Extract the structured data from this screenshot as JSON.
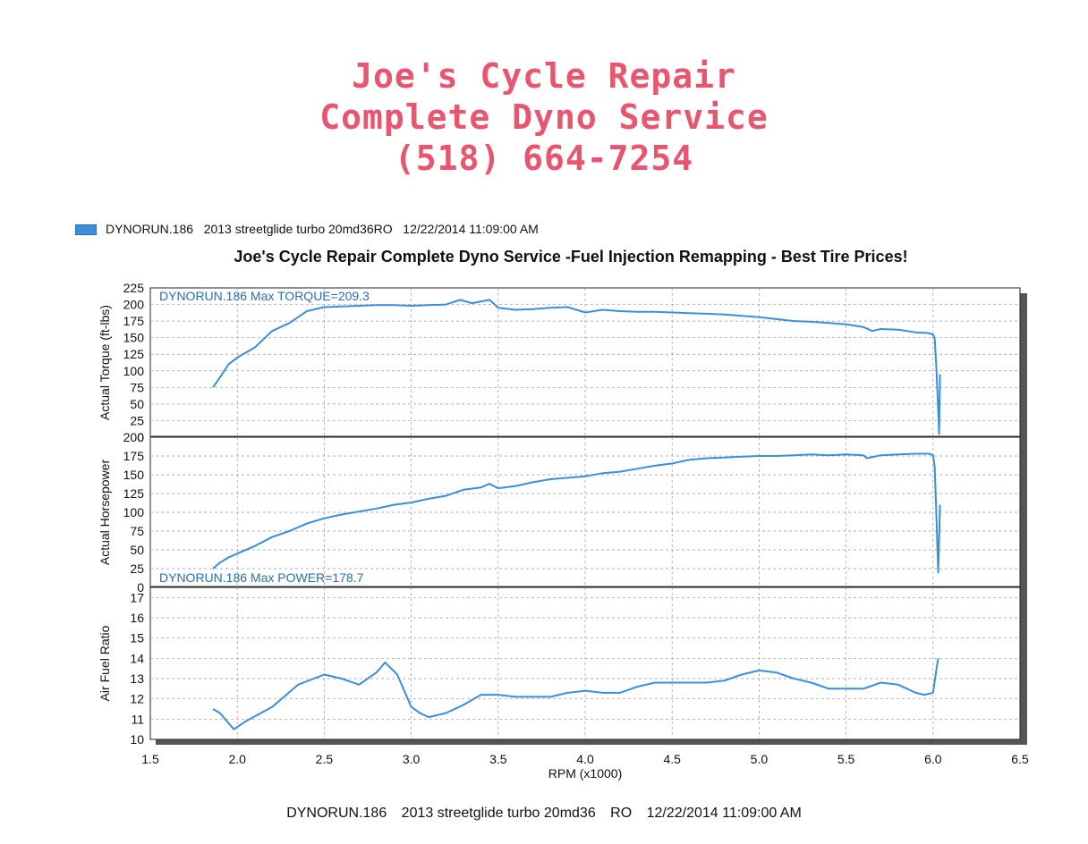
{
  "header": {
    "line1": "Joe's Cycle Repair",
    "line2": "Complete Dyno Service",
    "line3": "(518) 664-7254",
    "color": "#e8556e"
  },
  "legend": {
    "run": "DYNORUN.186",
    "desc": "2013 streetglide turbo 20md36RO",
    "datetime": "12/22/2014 11:09:00 AM"
  },
  "footer": {
    "run": "DYNORUN.186",
    "desc": "2013 streetglide turbo 20md36",
    "code": "RO",
    "datetime": "12/22/2014 11:09:00 AM"
  },
  "chart_data": {
    "type": "line",
    "title": "Joe's Cycle Repair Complete Dyno Service -Fuel Injection Remapping - Best Tire Prices!",
    "xlabel": "RPM (x1000)",
    "xlim": [
      1.5,
      6.5
    ],
    "xticks": [
      "1.5",
      "2.0",
      "2.5",
      "3.0",
      "3.5",
      "4.0",
      "4.5",
      "5.0",
      "5.5",
      "6.0",
      "6.5"
    ],
    "line_color": "#3a8fd8",
    "grid": true,
    "panels": [
      {
        "ylabel": "Actual Torque (ft-lbs)",
        "ylim": [
          0,
          225
        ],
        "yticks": [
          "0",
          "25",
          "50",
          "75",
          "100",
          "125",
          "150",
          "175",
          "200",
          "225"
        ],
        "annotation": "DYNORUN.186  Max TORQUE=209.3",
        "annotation_position": "top-left",
        "series": [
          {
            "x": [
              1.86,
              1.9,
              1.95,
              2.0,
              2.1,
              2.2,
              2.3,
              2.4,
              2.5,
              2.6,
              2.7,
              2.8,
              2.9,
              3.0,
              3.1,
              3.2,
              3.28,
              3.35,
              3.45,
              3.5,
              3.6,
              3.7,
              3.8,
              3.9,
              4.0,
              4.1,
              4.2,
              4.3,
              4.4,
              4.5,
              4.6,
              4.7,
              4.8,
              4.9,
              5.0,
              5.1,
              5.2,
              5.3,
              5.4,
              5.5,
              5.6,
              5.65,
              5.7,
              5.8,
              5.9,
              5.97,
              6.0,
              6.01,
              6.02,
              6.03,
              6.035,
              6.04
            ],
            "y": [
              75,
              90,
              110,
              120,
              135,
              160,
              172,
              190,
              196,
              197,
              198,
              199,
              199,
              198,
              199,
              200,
              207,
              202,
              207,
              195,
              192,
              193,
              195,
              196,
              188,
              192,
              190,
              189,
              189,
              188,
              187,
              186,
              185,
              183,
              181,
              178,
              175,
              174,
              172,
              170,
              166,
              160,
              163,
              162,
              158,
              157,
              155,
              148,
              100,
              40,
              5,
              95
            ]
          }
        ]
      },
      {
        "ylabel": "Actual Horsepower",
        "ylim": [
          0,
          200
        ],
        "yticks": [
          "0",
          "25",
          "50",
          "75",
          "100",
          "125",
          "150",
          "175",
          "200"
        ],
        "annotation": "DYNORUN.186  Max POWER=178.7",
        "annotation_position": "bottom-left",
        "series": [
          {
            "x": [
              1.86,
              1.9,
              1.95,
              2.0,
              2.1,
              2.2,
              2.3,
              2.4,
              2.5,
              2.6,
              2.7,
              2.8,
              2.9,
              3.0,
              3.1,
              3.2,
              3.3,
              3.4,
              3.45,
              3.5,
              3.6,
              3.7,
              3.8,
              3.9,
              4.0,
              4.1,
              4.2,
              4.3,
              4.4,
              4.5,
              4.6,
              4.7,
              4.8,
              4.9,
              5.0,
              5.1,
              5.2,
              5.3,
              5.4,
              5.5,
              5.6,
              5.62,
              5.7,
              5.8,
              5.9,
              5.98,
              6.0,
              6.01,
              6.02,
              6.03,
              6.04
            ],
            "y": [
              25,
              33,
              40,
              45,
              55,
              67,
              75,
              85,
              92,
              97,
              101,
              105,
              110,
              113,
              118,
              122,
              130,
              133,
              138,
              132,
              135,
              140,
              144,
              146,
              148,
              152,
              154,
              158,
              162,
              165,
              170,
              172,
              173,
              174,
              175,
              175,
              176,
              177,
              176,
              177,
              176,
              172,
              176,
              177,
              178,
              178,
              176,
              160,
              90,
              20,
              110
            ]
          }
        ]
      },
      {
        "ylabel": "Air Fuel Ratio",
        "ylim": [
          10,
          17.5
        ],
        "yticks": [
          "10",
          "11",
          "12",
          "13",
          "14",
          "15",
          "16",
          "17"
        ],
        "annotation": "",
        "series": [
          {
            "x": [
              1.86,
              1.9,
              1.95,
              1.98,
              2.05,
              2.2,
              2.35,
              2.5,
              2.6,
              2.7,
              2.8,
              2.85,
              2.92,
              3.0,
              3.05,
              3.1,
              3.2,
              3.3,
              3.4,
              3.5,
              3.6,
              3.7,
              3.8,
              3.9,
              4.0,
              4.1,
              4.2,
              4.3,
              4.4,
              4.5,
              4.6,
              4.7,
              4.8,
              4.9,
              5.0,
              5.1,
              5.2,
              5.3,
              5.4,
              5.5,
              5.6,
              5.7,
              5.8,
              5.9,
              5.95,
              6.0,
              6.02,
              6.03
            ],
            "y": [
              11.5,
              11.3,
              10.8,
              10.5,
              10.9,
              11.6,
              12.7,
              13.2,
              13.0,
              12.7,
              13.3,
              13.8,
              13.2,
              11.6,
              11.3,
              11.1,
              11.3,
              11.7,
              12.2,
              12.2,
              12.1,
              12.1,
              12.1,
              12.3,
              12.4,
              12.3,
              12.3,
              12.6,
              12.8,
              12.8,
              12.8,
              12.8,
              12.9,
              13.2,
              13.4,
              13.3,
              13.0,
              12.8,
              12.5,
              12.5,
              12.5,
              12.8,
              12.7,
              12.3,
              12.2,
              12.3,
              13.5,
              14.0
            ]
          }
        ]
      }
    ]
  }
}
